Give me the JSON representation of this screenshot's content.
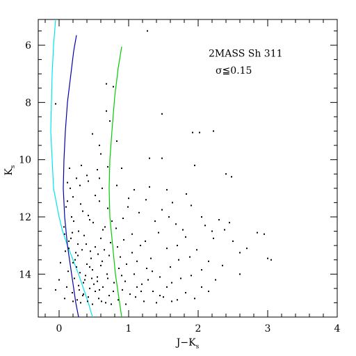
{
  "chart_data": {
    "type": "scatter",
    "title": "",
    "xlabel": {
      "main": "J−K",
      "sub": "s"
    },
    "ylabel": {
      "main": "K",
      "sub": "s"
    },
    "xlim": [
      -0.3,
      4.0
    ],
    "ylim": [
      15.5,
      5.1
    ],
    "y_inverted": true,
    "x_ticks": [
      0,
      1,
      2,
      3,
      4
    ],
    "x_tick_labels": [
      "0",
      "1",
      "2",
      "3",
      "4"
    ],
    "y_ticks": [
      6,
      8,
      10,
      12,
      14
    ],
    "y_tick_labels": [
      "6",
      "8",
      "10",
      "12",
      "14"
    ],
    "x_minor_step": 0.2,
    "y_minor_step": 0.5,
    "grid": false,
    "annotations": [
      {
        "text": "2MASS Sh 311",
        "x": 2.15,
        "y": 6.4
      },
      {
        "text": "σ≦0.15",
        "x": 2.25,
        "y": 7.0
      }
    ],
    "isochrones": [
      {
        "color": "#00e5ee",
        "points": [
          [
            -0.05,
            5.1
          ],
          [
            -0.08,
            6.0
          ],
          [
            -0.1,
            7.0
          ],
          [
            -0.11,
            8.0
          ],
          [
            -0.12,
            9.0
          ],
          [
            -0.1,
            10.0
          ],
          [
            -0.08,
            11.0
          ],
          [
            0.0,
            12.0
          ],
          [
            0.05,
            12.5
          ],
          [
            0.12,
            13.0
          ],
          [
            0.2,
            13.5
          ],
          [
            0.28,
            14.0
          ],
          [
            0.35,
            14.5
          ],
          [
            0.42,
            15.0
          ],
          [
            0.48,
            15.5
          ]
        ]
      },
      {
        "color": "#0000aa",
        "points": [
          [
            0.25,
            5.65
          ],
          [
            0.21,
            6.2
          ],
          [
            0.17,
            7.0
          ],
          [
            0.12,
            8.0
          ],
          [
            0.09,
            9.0
          ],
          [
            0.07,
            10.0
          ],
          [
            0.06,
            11.0
          ],
          [
            0.08,
            12.0
          ],
          [
            0.1,
            12.5
          ],
          [
            0.12,
            13.0
          ],
          [
            0.15,
            13.5
          ],
          [
            0.18,
            14.0
          ],
          [
            0.21,
            14.5
          ],
          [
            0.24,
            15.0
          ],
          [
            0.28,
            15.5
          ]
        ]
      },
      {
        "color": "#00cc00",
        "points": [
          [
            0.9,
            6.05
          ],
          [
            0.85,
            6.8
          ],
          [
            0.8,
            7.8
          ],
          [
            0.76,
            9.0
          ],
          [
            0.73,
            10.0
          ],
          [
            0.72,
            11.0
          ],
          [
            0.73,
            12.0
          ],
          [
            0.75,
            12.5
          ],
          [
            0.77,
            13.0
          ],
          [
            0.79,
            13.5
          ],
          [
            0.81,
            14.0
          ],
          [
            0.84,
            14.5
          ],
          [
            0.87,
            15.0
          ],
          [
            0.9,
            15.5
          ]
        ]
      }
    ],
    "series": [
      {
        "marker_color": "#000000",
        "points": [
          [
            1.27,
            5.5
          ],
          [
            -0.05,
            8.05
          ],
          [
            0.68,
            7.35
          ],
          [
            0.78,
            7.45
          ],
          [
            0.68,
            8.3
          ],
          [
            1.48,
            8.4
          ],
          [
            0.73,
            8.65
          ],
          [
            2.22,
            9.0
          ],
          [
            1.92,
            9.05
          ],
          [
            2.02,
            9.05
          ],
          [
            0.48,
            9.1
          ],
          [
            0.58,
            9.5
          ],
          [
            0.83,
            9.35
          ],
          [
            0.6,
            9.8
          ],
          [
            1.3,
            9.95
          ],
          [
            1.48,
            9.95
          ],
          [
            0.15,
            10.3
          ],
          [
            0.32,
            10.2
          ],
          [
            0.55,
            10.35
          ],
          [
            0.7,
            10.25
          ],
          [
            0.9,
            10.3
          ],
          [
            1.95,
            10.2
          ],
          [
            2.4,
            10.5
          ],
          [
            2.48,
            10.6
          ],
          [
            0.12,
            10.8
          ],
          [
            0.3,
            10.9
          ],
          [
            0.42,
            10.75
          ],
          [
            0.62,
            11.0
          ],
          [
            0.83,
            10.9
          ],
          [
            1.08,
            11.05
          ],
          [
            1.3,
            10.95
          ],
          [
            1.55,
            11.05
          ],
          [
            1.83,
            11.2
          ],
          [
            0.2,
            11.3
          ],
          [
            0.52,
            11.25
          ],
          [
            1.0,
            11.35
          ],
          [
            1.25,
            11.4
          ],
          [
            1.63,
            11.5
          ],
          [
            1.9,
            11.6
          ],
          [
            0.1,
            11.65
          ],
          [
            0.34,
            11.8
          ],
          [
            0.7,
            11.7
          ],
          [
            1.15,
            11.85
          ],
          [
            1.48,
            11.75
          ],
          [
            2.05,
            12.0
          ],
          [
            2.3,
            12.1
          ],
          [
            0.18,
            12.0
          ],
          [
            0.44,
            12.1
          ],
          [
            0.92,
            12.05
          ],
          [
            1.68,
            12.25
          ],
          [
            2.1,
            12.3
          ],
          [
            2.38,
            12.45
          ],
          [
            0.07,
            12.35
          ],
          [
            0.28,
            12.5
          ],
          [
            0.63,
            12.45
          ],
          [
            1.05,
            12.6
          ],
          [
            1.43,
            12.55
          ],
          [
            1.82,
            12.7
          ],
          [
            2.22,
            12.75
          ],
          [
            2.85,
            12.55
          ],
          [
            2.95,
            12.6
          ],
          [
            2.5,
            12.85
          ],
          [
            0.14,
            12.85
          ],
          [
            0.39,
            12.95
          ],
          [
            0.74,
            12.9
          ],
          [
            1.17,
            13.0
          ],
          [
            1.55,
            13.1
          ],
          [
            1.98,
            13.15
          ],
          [
            2.6,
            13.25
          ],
          [
            0.09,
            13.2
          ],
          [
            0.27,
            13.35
          ],
          [
            0.56,
            13.3
          ],
          [
            0.88,
            13.4
          ],
          [
            1.32,
            13.45
          ],
          [
            1.72,
            13.5
          ],
          [
            2.15,
            13.55
          ],
          [
            3.0,
            13.45
          ],
          [
            3.05,
            13.5
          ],
          [
            0.2,
            13.6
          ],
          [
            0.4,
            13.65
          ],
          [
            0.6,
            13.7
          ],
          [
            0.97,
            13.65
          ],
          [
            1.26,
            13.8
          ],
          [
            1.6,
            13.75
          ],
          [
            2.05,
            13.85
          ],
          [
            0.13,
            13.9
          ],
          [
            0.3,
            13.95
          ],
          [
            0.48,
            13.85
          ],
          [
            0.69,
            14.0
          ],
          [
            1.08,
            14.0
          ],
          [
            1.45,
            14.1
          ],
          [
            1.9,
            14.05
          ],
          [
            2.25,
            14.2
          ],
          [
            0.22,
            14.15
          ],
          [
            0.37,
            14.2
          ],
          [
            0.55,
            14.25
          ],
          [
            0.79,
            14.3
          ],
          [
            1.19,
            14.35
          ],
          [
            1.62,
            14.3
          ],
          [
            2.05,
            14.45
          ],
          [
            0.11,
            14.45
          ],
          [
            0.28,
            14.4
          ],
          [
            0.44,
            14.5
          ],
          [
            0.63,
            14.45
          ],
          [
            0.91,
            14.55
          ],
          [
            1.35,
            14.6
          ],
          [
            1.82,
            14.65
          ],
          [
            -0.05,
            14.55
          ],
          [
            0.19,
            14.65
          ],
          [
            0.35,
            14.7
          ],
          [
            0.52,
            14.6
          ],
          [
            0.72,
            14.75
          ],
          [
            1.02,
            14.7
          ],
          [
            1.5,
            14.8
          ],
          [
            0.08,
            14.85
          ],
          [
            0.26,
            14.9
          ],
          [
            0.42,
            14.8
          ],
          [
            0.61,
            14.95
          ],
          [
            0.85,
            14.9
          ],
          [
            1.22,
            14.95
          ],
          [
            1.7,
            14.9
          ],
          [
            0.31,
            15.0
          ],
          [
            0.48,
            15.05
          ],
          [
            0.67,
            15.0
          ],
          [
            0.96,
            15.05
          ],
          [
            1.4,
            15.0
          ],
          [
            0.14,
            13.1
          ],
          [
            0.33,
            13.15
          ],
          [
            0.46,
            13.45
          ],
          [
            0.25,
            13.75
          ],
          [
            0.38,
            14.05
          ],
          [
            0.5,
            14.35
          ],
          [
            0.29,
            14.55
          ],
          [
            0.41,
            14.95
          ],
          [
            0.57,
            14.85
          ],
          [
            0.23,
            13.5
          ],
          [
            0.36,
            12.65
          ],
          [
            0.49,
            12.2
          ],
          [
            0.21,
            12.15
          ],
          [
            0.31,
            11.55
          ],
          [
            0.16,
            11.0
          ],
          [
            0.4,
            10.55
          ],
          [
            0.25,
            10.65
          ],
          [
            0.58,
            10.65
          ],
          [
            0.08,
            12.6
          ],
          [
            0.45,
            13.2
          ],
          [
            0.62,
            13.55
          ],
          [
            0.7,
            14.15
          ],
          [
            0.95,
            14.25
          ],
          [
            1.12,
            14.45
          ],
          [
            0.58,
            14.55
          ],
          [
            0.78,
            14.6
          ],
          [
            1.28,
            14.2
          ],
          [
            0.86,
            13.8
          ],
          [
            1.05,
            13.25
          ],
          [
            1.24,
            12.85
          ],
          [
            0.82,
            12.4
          ],
          [
            1.38,
            12.15
          ],
          [
            0.99,
            11.65
          ],
          [
            1.7,
            13.0
          ],
          [
            1.88,
            13.4
          ],
          [
            2.35,
            13.7
          ],
          [
            2.6,
            14.0
          ],
          [
            1.75,
            14.15
          ],
          [
            2.15,
            14.6
          ],
          [
            1.95,
            14.85
          ],
          [
            1.1,
            14.8
          ],
          [
            0.35,
            14.3
          ],
          [
            0.44,
            13.75
          ],
          [
            0.52,
            13.05
          ],
          [
            0.6,
            12.75
          ],
          [
            0.76,
            12.15
          ],
          [
            0.93,
            12.8
          ],
          [
            1.12,
            13.55
          ],
          [
            1.34,
            13.9
          ],
          [
            1.55,
            14.45
          ],
          [
            0.2,
            14.95
          ],
          [
            0.75,
            15.05
          ],
          [
            0.55,
            14.1
          ],
          [
            0.65,
            13.15
          ],
          [
            0.27,
            12.95
          ],
          [
            0.19,
            12.55
          ],
          [
            0.42,
            11.95
          ],
          [
            0.58,
            11.45
          ],
          [
            0.12,
            11.45
          ],
          [
            0.66,
            12.35
          ],
          [
            0.84,
            13.05
          ],
          [
            0.72,
            13.35
          ],
          [
            0.9,
            14.05
          ],
          [
            1.18,
            14.6
          ],
          [
            1.45,
            14.75
          ],
          [
            1.62,
            14.95
          ],
          [
            0.34,
            14.75
          ],
          [
            0.47,
            14.15
          ],
          [
            0.24,
            13.25
          ],
          [
            0.17,
            12.75
          ],
          [
            2.45,
            12.2
          ],
          [
            2.7,
            13.1
          ],
          [
            2.2,
            12.5
          ],
          [
            1.58,
            12.0
          ],
          [
            1.78,
            12.45
          ],
          [
            0.02,
            13.6
          ],
          [
            0.0,
            14.2
          ]
        ]
      }
    ]
  }
}
